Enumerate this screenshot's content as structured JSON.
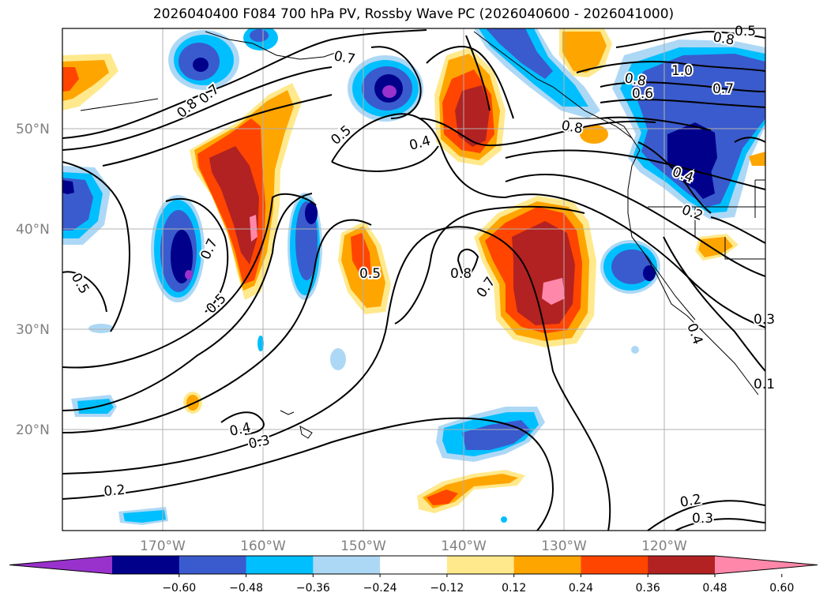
{
  "title": "2026040400 F084 700 hPa PV, Rossby Wave PC (2026040600 - 2026041000)",
  "lat_labels": [
    "50°N",
    "40°N",
    "30°N",
    "20°N"
  ],
  "lon_labels": [
    "170°W",
    "160°W",
    "150°W",
    "140°W",
    "130°W",
    "120°W"
  ],
  "colorbar": {
    "colors": [
      "#9932cc",
      "#00008b",
      "#3a5bcd",
      "#00bfff",
      "#add8f5",
      "#ffffff",
      "#ffe98c",
      "#ffa500",
      "#ff4500",
      "#b22222",
      "#ff88aa"
    ],
    "tick_labels": [
      "−0.60",
      "−0.48",
      "−0.36",
      "−0.24",
      "−0.12",
      "0.12",
      "0.24",
      "0.36",
      "0.48",
      "0.60"
    ]
  },
  "contour_labels": [
    "0.8",
    "0.7",
    "0.7",
    "0.8",
    "1.0",
    "0.8",
    "0.7",
    "0.6",
    "0.8",
    "0.5",
    "0.4",
    "0.4",
    "0.2",
    "0.7",
    "0.5",
    "0.5",
    "0.8",
    "0.7",
    "0.5",
    "0.3",
    "0.4",
    "0.4",
    "0.3",
    "0.2",
    "0.2",
    "0.3",
    "0.1",
    "0.5"
  ]
}
